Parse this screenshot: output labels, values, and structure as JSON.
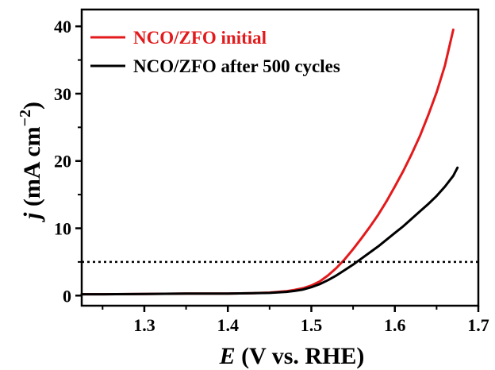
{
  "chart_data": {
    "type": "line",
    "xlabel": {
      "var": "E",
      "rest": " (V vs. RHE)"
    },
    "ylabel": {
      "var": "j",
      "pre": " (mA cm",
      "sup": "−2",
      "post": ")"
    },
    "xlim": [
      1.225,
      1.7
    ],
    "ylim": [
      -1.5,
      42.5
    ],
    "x_ticks": [
      1.3,
      1.4,
      1.5,
      1.6,
      1.7
    ],
    "y_ticks": [
      0,
      10,
      20,
      30,
      40
    ],
    "x_tick_labels": [
      "1.3",
      "1.4",
      "1.5",
      "1.6",
      "1.7"
    ],
    "y_tick_labels": [
      "0",
      "10",
      "20",
      "30",
      "40"
    ],
    "grid": false,
    "legend": "top-left",
    "reference_line": {
      "y": 5,
      "x_range": [
        1.225,
        1.7
      ],
      "style": "dotted"
    },
    "series": [
      {
        "name": "NCO/ZFO initial",
        "color": "#e31a1c",
        "x": [
          1.225,
          1.25,
          1.3,
          1.35,
          1.4,
          1.43,
          1.45,
          1.47,
          1.48,
          1.49,
          1.5,
          1.51,
          1.52,
          1.53,
          1.54,
          1.55,
          1.56,
          1.57,
          1.58,
          1.59,
          1.6,
          1.61,
          1.62,
          1.63,
          1.64,
          1.65,
          1.66,
          1.67
        ],
        "y": [
          0.2,
          0.2,
          0.25,
          0.3,
          0.3,
          0.35,
          0.45,
          0.65,
          0.85,
          1.1,
          1.5,
          2.1,
          3.0,
          4.1,
          5.4,
          6.9,
          8.5,
          10.2,
          12.0,
          14.0,
          16.2,
          18.5,
          21.0,
          23.7,
          26.8,
          30.2,
          34.2,
          39.5
        ]
      },
      {
        "name": "NCO/ZFO after 500 cycles",
        "color": "#000000",
        "x": [
          1.225,
          1.25,
          1.3,
          1.35,
          1.4,
          1.43,
          1.45,
          1.47,
          1.48,
          1.49,
          1.5,
          1.51,
          1.52,
          1.53,
          1.54,
          1.55,
          1.56,
          1.57,
          1.58,
          1.59,
          1.6,
          1.61,
          1.62,
          1.63,
          1.64,
          1.65,
          1.66,
          1.67,
          1.675
        ],
        "y": [
          0.2,
          0.2,
          0.25,
          0.3,
          0.3,
          0.35,
          0.4,
          0.55,
          0.7,
          0.9,
          1.25,
          1.7,
          2.3,
          3.0,
          3.8,
          4.6,
          5.5,
          6.4,
          7.3,
          8.3,
          9.3,
          10.3,
          11.4,
          12.5,
          13.6,
          14.8,
          16.2,
          17.8,
          19.0
        ]
      }
    ]
  }
}
